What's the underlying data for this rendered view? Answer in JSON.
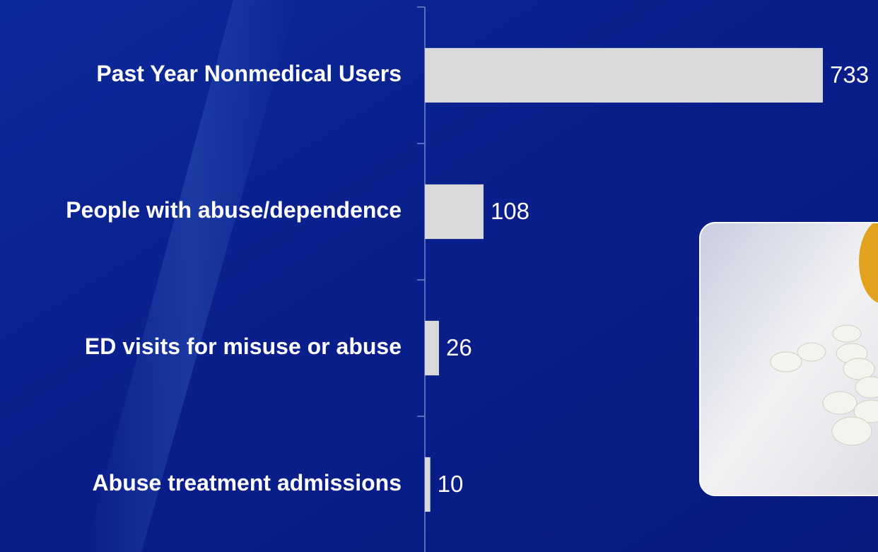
{
  "chart_data": {
    "type": "bar",
    "orientation": "horizontal",
    "categories": [
      "Past Year Nonmedical Users",
      "People with abuse/dependence",
      "ED visits for misuse or abuse",
      "Abuse treatment admissions"
    ],
    "values": [
      733,
      108,
      26,
      10
    ],
    "color": "#d9d9d9"
  }
}
